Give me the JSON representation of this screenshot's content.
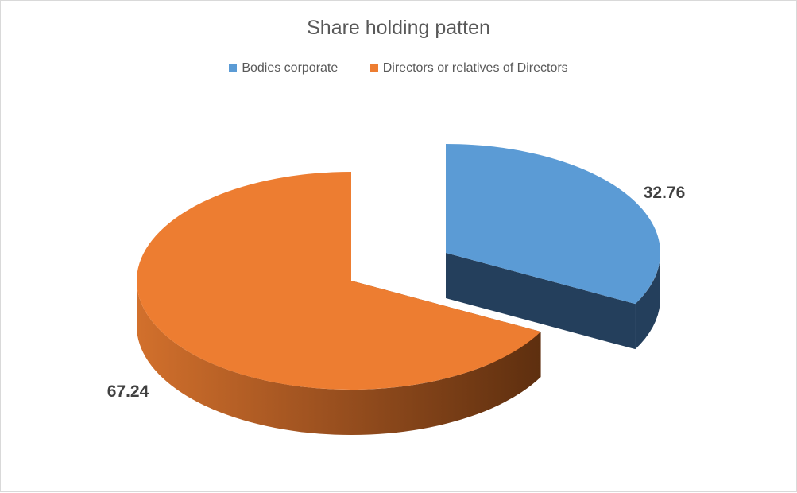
{
  "chart_data": {
    "type": "pie",
    "style": "3d-exploded",
    "title": "Share holding patten",
    "legend_position": "top",
    "categories": [
      "Bodies corporate",
      "Directors or relatives of Directors"
    ],
    "values": [
      32.76,
      67.24
    ],
    "data_labels": [
      "32.76",
      "67.24"
    ],
    "colors": [
      "#5B9BD5",
      "#ED7D31"
    ],
    "side_colors": [
      "#243F5C",
      "#7A3D12"
    ]
  }
}
